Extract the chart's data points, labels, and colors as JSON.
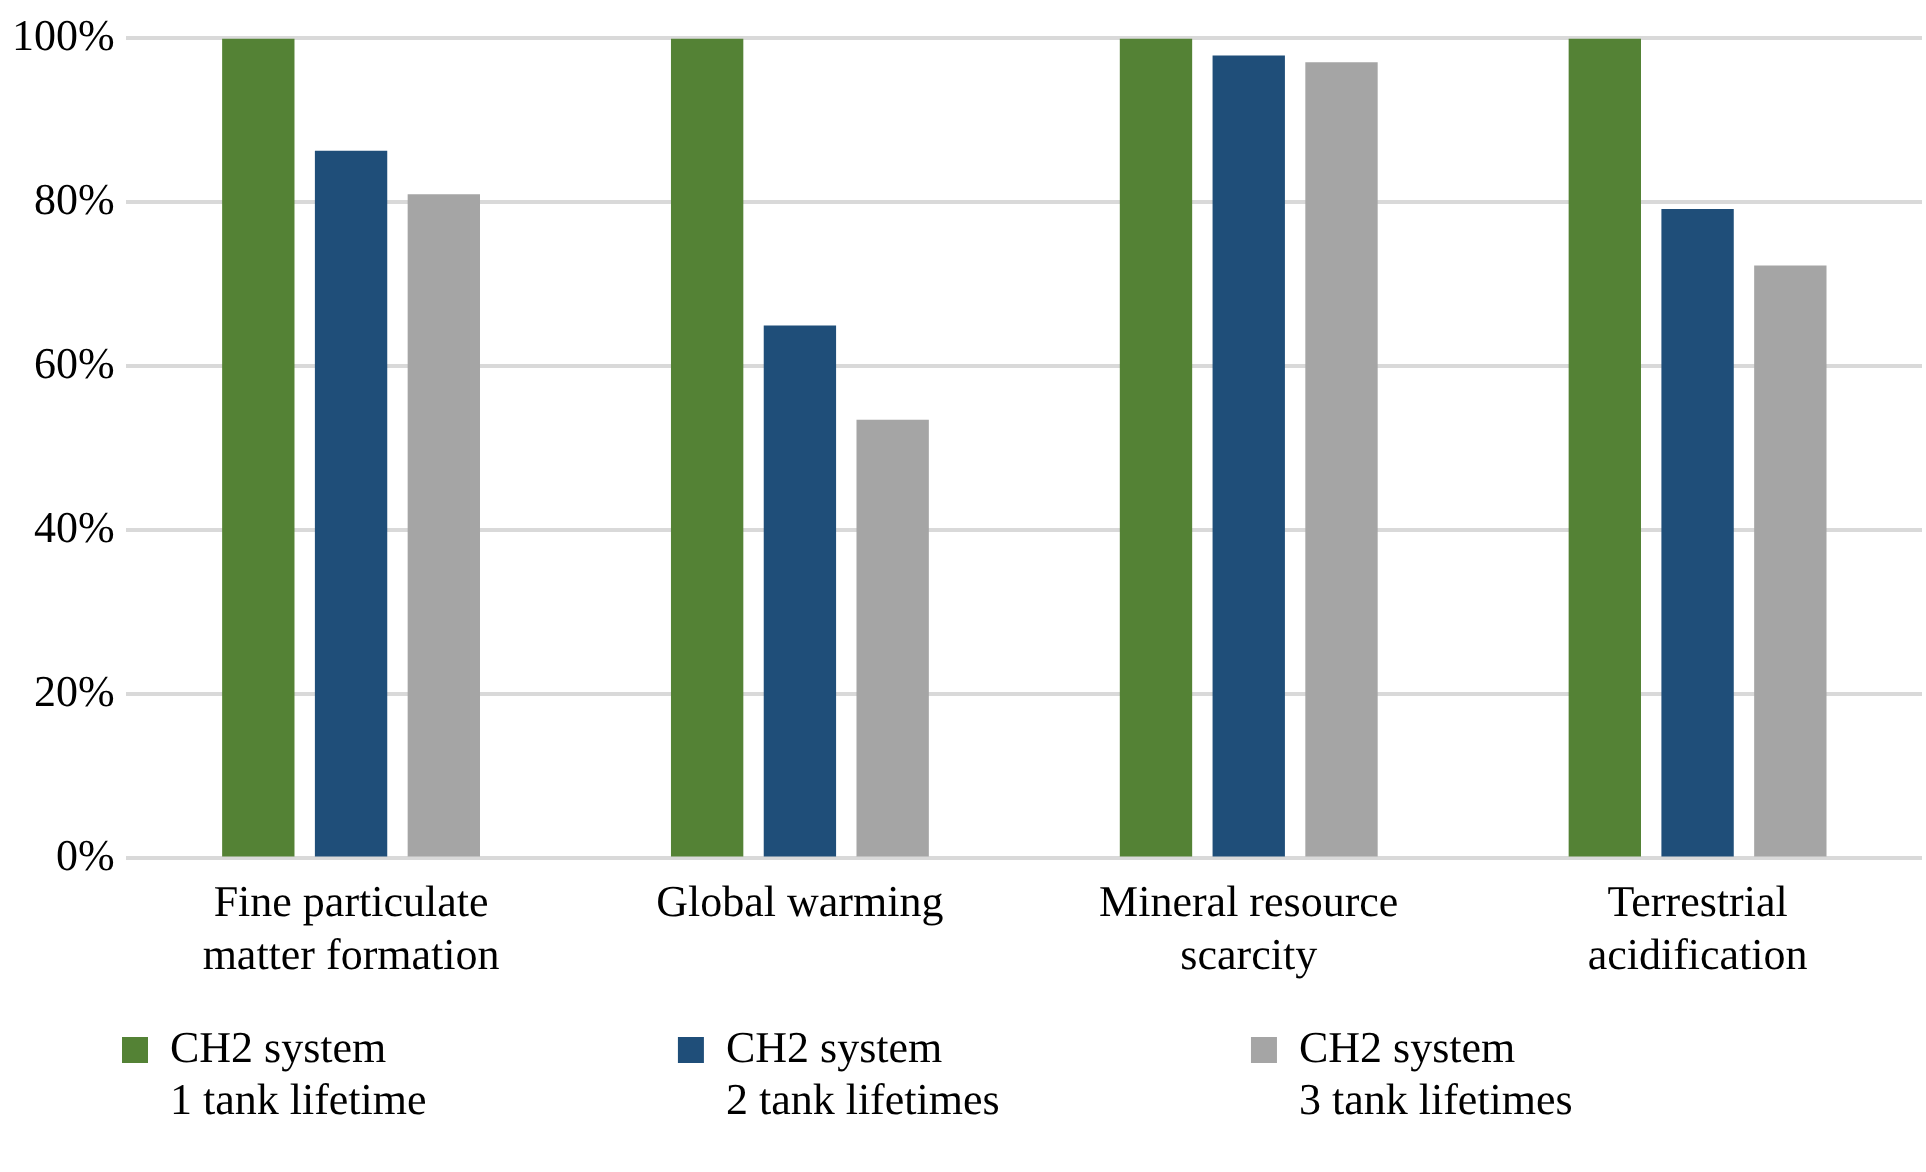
{
  "chart_data": {
    "type": "bar",
    "categories": [
      "Fine particulate matter formation",
      "Global warming",
      "Mineral resource scarcity",
      "Terrestrial acidification"
    ],
    "series": [
      {
        "name": "CH2 system 1 tank lifetime",
        "color": "#548235",
        "values": [
          100,
          100,
          100,
          100
        ]
      },
      {
        "name": "CH2 system 2 tank lifetimes",
        "color": "#1f4e79",
        "values": [
          86.3,
          65,
          97.9,
          79.2
        ]
      },
      {
        "name": "CH2 system 3 tank lifetimes",
        "color": "#a5a5a5",
        "values": [
          81,
          53.5,
          97.1,
          72.3
        ]
      }
    ],
    "ylim": [
      0,
      100
    ],
    "yticks": [
      {
        "value": 0,
        "label": "0%"
      },
      {
        "value": 20,
        "label": "20%"
      },
      {
        "value": 40,
        "label": "40%"
      },
      {
        "value": 60,
        "label": "60%"
      },
      {
        "value": 80,
        "label": "80%"
      },
      {
        "value": 100,
        "label": "100%"
      }
    ],
    "grid": "y",
    "legend": "bottom"
  }
}
